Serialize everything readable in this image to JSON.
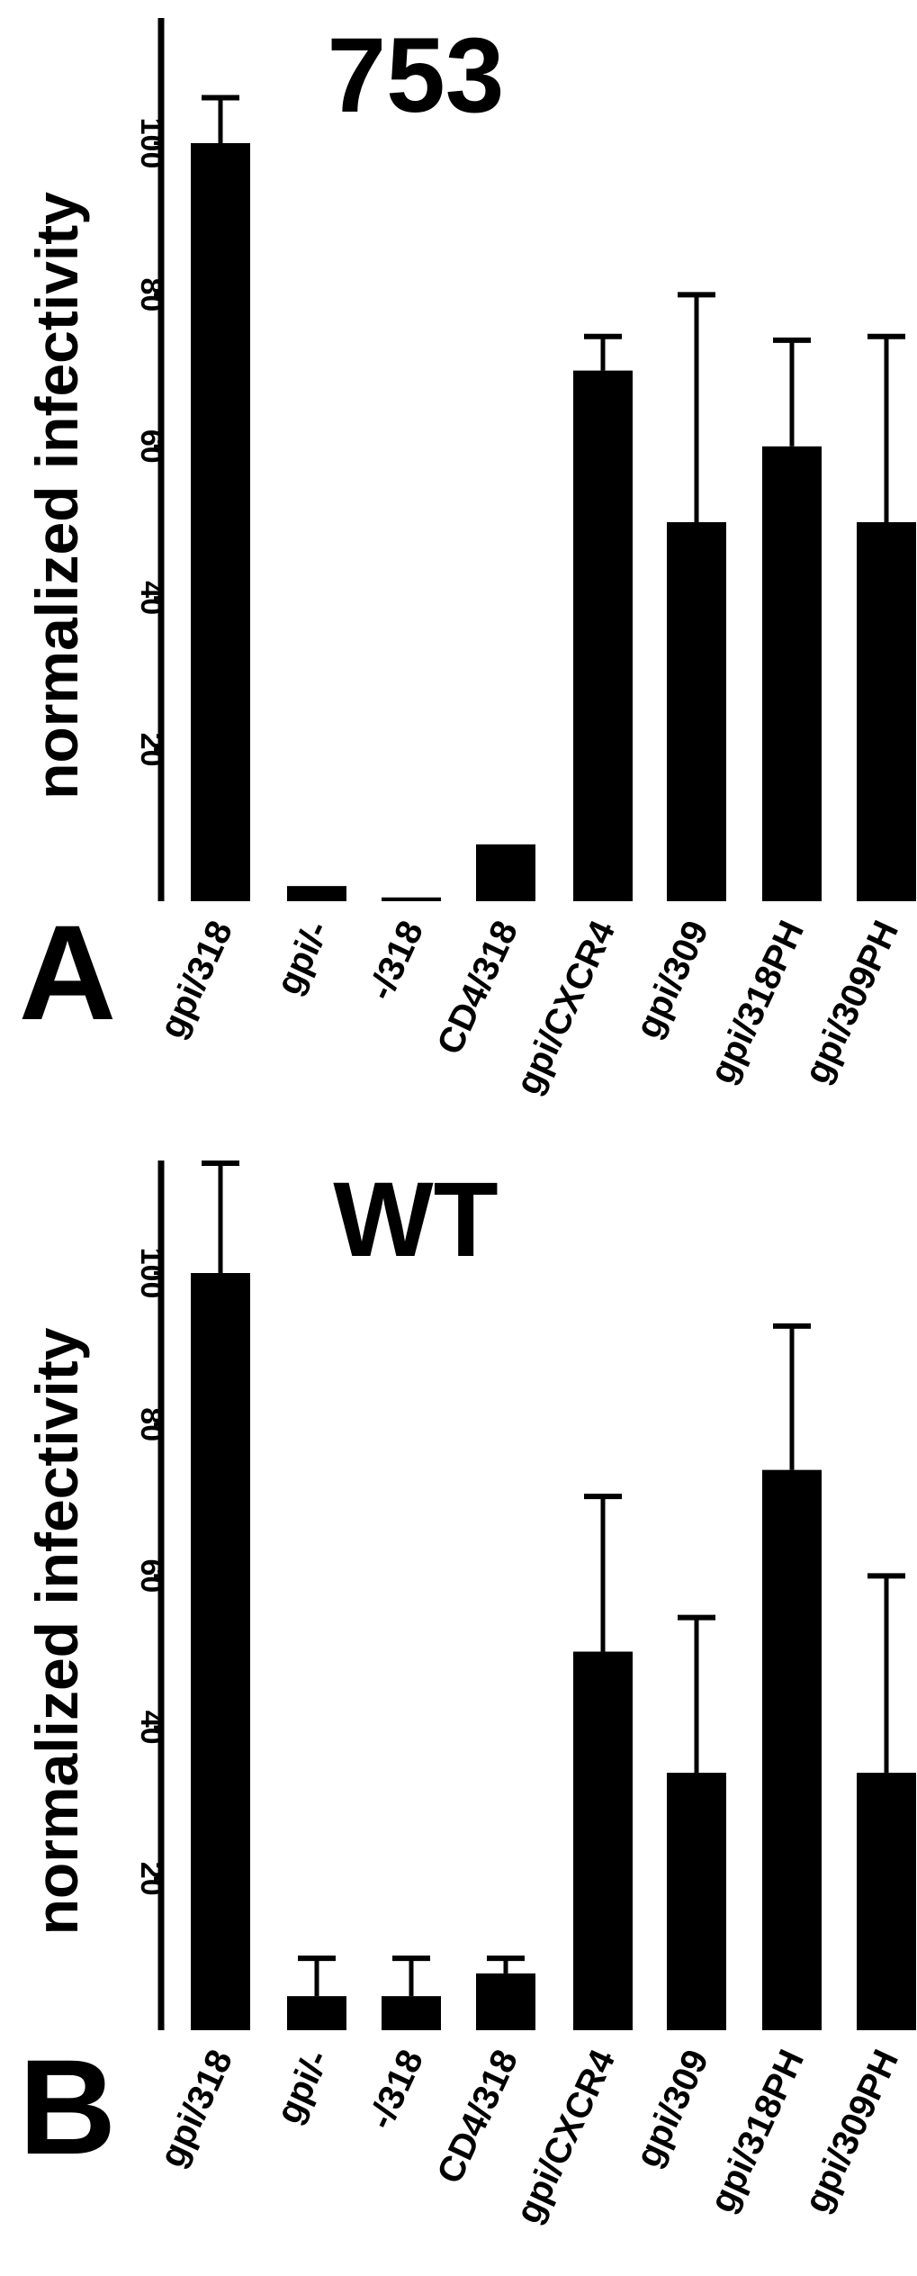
{
  "chart_data": [
    {
      "type": "bar",
      "panel_label": "A",
      "title": "753",
      "ylabel": "normalized infectivity",
      "xlabel": "",
      "ylim": [
        0,
        115
      ],
      "yticks": [
        20,
        40,
        60,
        80,
        100
      ],
      "grid": false,
      "categories": [
        "gpi/318",
        "gpi/-",
        "-/318",
        "CD4/318",
        "gpi/CXCR4",
        "gpi/309",
        "gpi/318PH",
        "gpi/309PH"
      ],
      "values": [
        100,
        2,
        0.5,
        7.5,
        70,
        50,
        60,
        50
      ],
      "error_upper": [
        106,
        null,
        null,
        null,
        74.5,
        80,
        74,
        74.5
      ],
      "bar_color": "#000000"
    },
    {
      "type": "bar",
      "panel_label": "B",
      "title": "WT",
      "ylabel": "normalized infectivity",
      "xlabel": "",
      "ylim": [
        0,
        115
      ],
      "yticks": [
        20,
        40,
        60,
        80,
        100
      ],
      "grid": false,
      "categories": [
        "gpi/318",
        "gpi/-",
        "-/318",
        "CD4/318",
        "gpi/CXCR4",
        "gpi/309",
        "gpi/318PH",
        "gpi/309PH"
      ],
      "values": [
        100,
        4.5,
        4.5,
        7.5,
        50,
        34,
        74,
        34
      ],
      "error_upper": [
        114.5,
        9.5,
        9.5,
        9.5,
        70.5,
        54.5,
        93,
        60
      ],
      "bar_color": "#000000"
    }
  ]
}
